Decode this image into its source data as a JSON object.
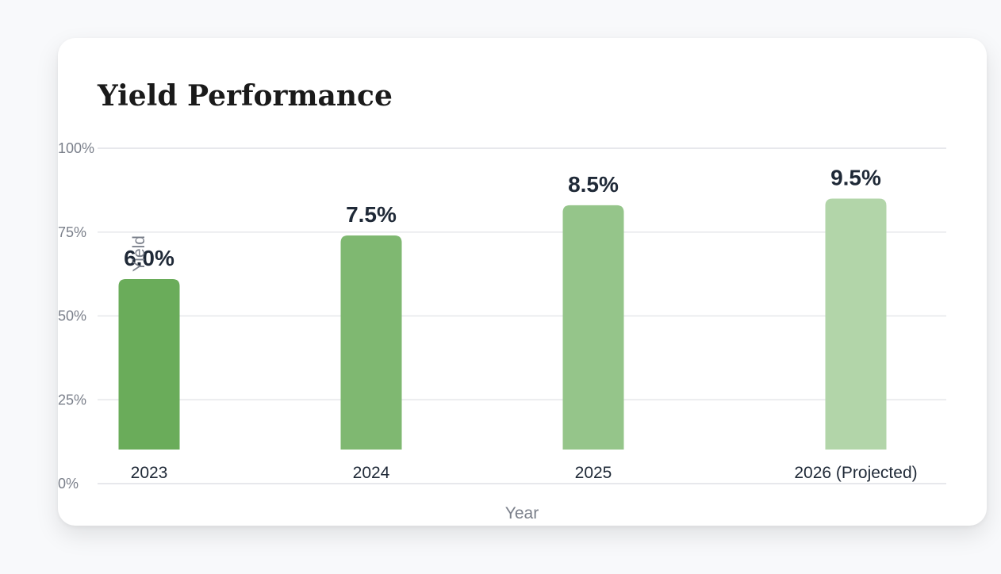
{
  "chart_data": {
    "type": "bar",
    "title": "Yield Performance",
    "xlabel": "Year",
    "ylabel": "Yield",
    "categories": [
      "2023",
      "2024",
      "2025",
      "2026 (Projected)"
    ],
    "values": [
      6.0,
      7.5,
      8.5,
      9.5
    ],
    "value_labels": [
      "6.0%",
      "7.5%",
      "8.5%",
      "9.5%"
    ],
    "bar_fill_percent": [
      61,
      74,
      83,
      85
    ],
    "y_ticks": [
      "0%",
      "25%",
      "50%",
      "75%",
      "100%"
    ],
    "ylim": [
      0,
      100
    ],
    "grid": true,
    "legend": "none",
    "colors": [
      "#6aac5a",
      "#7fb871",
      "#95c58a",
      "#b2d5a9"
    ]
  }
}
